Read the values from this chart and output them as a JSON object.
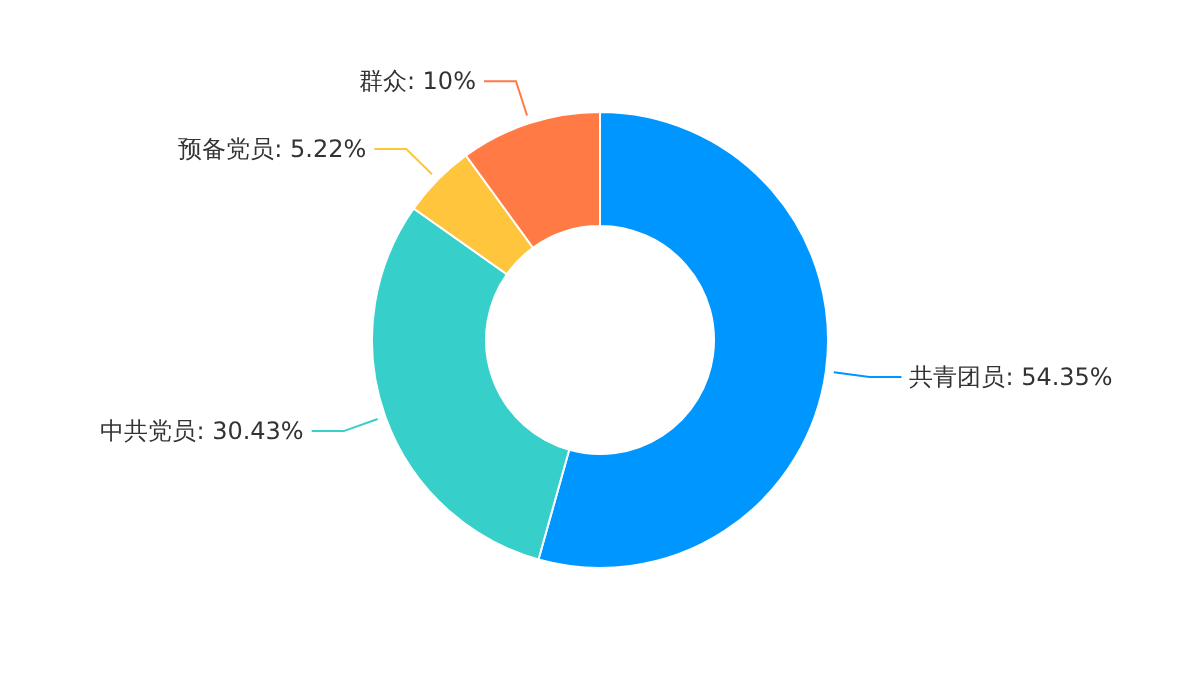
{
  "chart_data": {
    "type": "donut",
    "categories": [
      "共青团员",
      "中共党员",
      "预备党员",
      "群众"
    ],
    "values": [
      54.35,
      30.43,
      5.22,
      10
    ],
    "value_labels": [
      "54.35%",
      "30.43%",
      "5.22%",
      "10%"
    ],
    "colors": [
      "#0096ff",
      "#36cfc9",
      "#ffc53d",
      "#ff7a45"
    ],
    "legend": false
  }
}
